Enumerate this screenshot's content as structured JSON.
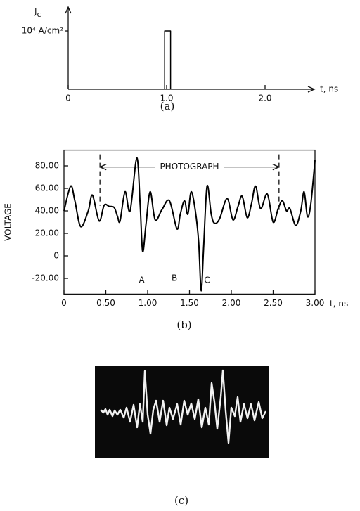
{
  "chart_data": [
    {
      "type": "line",
      "caption": "(a)",
      "ylabel": {
        "symbol": "J",
        "subscript": "c"
      },
      "xlabel": "t, ns",
      "x": [
        0.98,
        0.98,
        1.04,
        1.04
      ],
      "values": [
        0,
        10000,
        10000,
        0
      ],
      "xlim": [
        0,
        2.5
      ],
      "ylim": [
        0,
        14100
      ],
      "xticks": [
        0,
        {
          "value": 1,
          "label": "1.0"
        },
        {
          "value": 2,
          "label": "2.0"
        }
      ],
      "yticks": [
        {
          "value": 10000,
          "label": "10⁴ A/cm²"
        }
      ],
      "color": "#000000",
      "frame": false
    },
    {
      "type": "line",
      "caption": "(b)",
      "ylabel": "VOLTAGE",
      "xlabel": "t, ns",
      "x": [
        0.0,
        0.08,
        0.13,
        0.2,
        0.29,
        0.34,
        0.42,
        0.48,
        0.54,
        0.6,
        0.64,
        0.67,
        0.73,
        0.79,
        0.87,
        0.91,
        0.94,
        0.98,
        1.03,
        1.09,
        1.17,
        1.26,
        1.35,
        1.39,
        1.44,
        1.48,
        1.52,
        1.57,
        1.61,
        1.64,
        1.67,
        1.71,
        1.76,
        1.8,
        1.86,
        1.95,
        2.02,
        2.08,
        2.13,
        2.19,
        2.24,
        2.29,
        2.35,
        2.43,
        2.5,
        2.56,
        2.61,
        2.66,
        2.7,
        2.77,
        2.83,
        2.87,
        2.91,
        2.95,
        3.0
      ],
      "values": [
        40,
        62,
        49,
        26,
        40,
        54,
        31,
        45,
        44,
        43,
        35,
        31,
        57,
        40,
        87,
        46,
        4,
        28,
        57,
        32,
        41,
        49,
        24,
        37,
        49,
        37,
        57,
        40,
        12,
        -31,
        9,
        62,
        37,
        29,
        33,
        51,
        32,
        44,
        53,
        34,
        46,
        62,
        42,
        55,
        30,
        42,
        49,
        40,
        42,
        27,
        40,
        57,
        35,
        46,
        85
      ],
      "xlim": [
        0,
        3
      ],
      "ylim": [
        -34,
        94
      ],
      "xticks": [
        0,
        {
          "value": 0.5,
          "label": "0.50"
        },
        {
          "value": 1,
          "label": "1.00"
        },
        {
          "value": 1.5,
          "label": "1.50"
        },
        {
          "value": 2,
          "label": "2.00"
        },
        {
          "value": 2.5,
          "label": "2.50"
        },
        {
          "value": 3,
          "label": "3.00"
        }
      ],
      "yticks": [
        {
          "value": -20,
          "label": "-20.00"
        },
        0,
        {
          "value": 20,
          "label": "20.00"
        },
        {
          "value": 40,
          "label": "40.00"
        },
        {
          "value": 60,
          "label": "60.00"
        },
        {
          "value": 80,
          "label": "80.00"
        }
      ],
      "annotations": [
        {
          "text": "A",
          "x": 0.93,
          "y": -22
        },
        {
          "text": "B",
          "x": 1.32,
          "y": -20
        },
        {
          "text": "C",
          "x": 1.71,
          "y": -22
        }
      ],
      "span_annotation": {
        "text": "PHOTOGRAPH",
        "x": [
          0.43,
          2.57
        ],
        "y": 79
      },
      "color": "#000000",
      "frame": true
    }
  ],
  "photo": {
    "caption": "(c)"
  }
}
